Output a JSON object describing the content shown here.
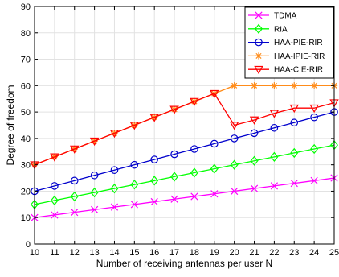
{
  "chart_data": {
    "type": "line",
    "title": "",
    "xlabel": "Number of receiving antennas per user N",
    "ylabel": "Degree of freedom",
    "xlim": [
      10,
      25
    ],
    "ylim": [
      0,
      90
    ],
    "xticks": [
      10,
      11,
      12,
      13,
      14,
      15,
      16,
      17,
      18,
      19,
      20,
      21,
      22,
      23,
      24,
      25
    ],
    "yticks": [
      0,
      10,
      20,
      30,
      40,
      50,
      60,
      70,
      80,
      90
    ],
    "grid": true,
    "legend_position": "top-right",
    "x": [
      10,
      11,
      12,
      13,
      14,
      15,
      16,
      17,
      18,
      19,
      20,
      21,
      22,
      23,
      24,
      25
    ],
    "series": [
      {
        "name": "TDMA",
        "color": "#ff00ff",
        "marker": "x",
        "values": [
          10,
          11,
          12,
          13,
          14,
          15,
          16,
          17,
          18,
          19,
          20,
          21,
          22,
          23,
          24,
          25
        ]
      },
      {
        "name": "RIA",
        "color": "#00ff00",
        "marker": "diamond",
        "values": [
          15,
          16.5,
          18,
          19.5,
          21,
          22.5,
          24,
          25.5,
          27,
          28.5,
          30,
          31.5,
          33,
          34.5,
          36,
          37.5
        ]
      },
      {
        "name": "HAA-PIE-RIR",
        "color": "#0000cc",
        "marker": "circle",
        "values": [
          20,
          22,
          24,
          26,
          28,
          30,
          32,
          34,
          36,
          38,
          40,
          42,
          44,
          46,
          48,
          50
        ]
      },
      {
        "name": "HAA-IPIE-RIR",
        "color": "#ff8c1a",
        "marker": "asterisk",
        "values": [
          30,
          33,
          36,
          39,
          42,
          45,
          48,
          51,
          54,
          57,
          60,
          60,
          60,
          60,
          60,
          60
        ]
      },
      {
        "name": "HAA-CIE-RIR",
        "color": "#ff0000",
        "marker": "triangle-down",
        "values": [
          30,
          33,
          36,
          39,
          42,
          45,
          48,
          51,
          54,
          57,
          45,
          47,
          49.5,
          51.5,
          51.5,
          53.5
        ]
      }
    ]
  }
}
